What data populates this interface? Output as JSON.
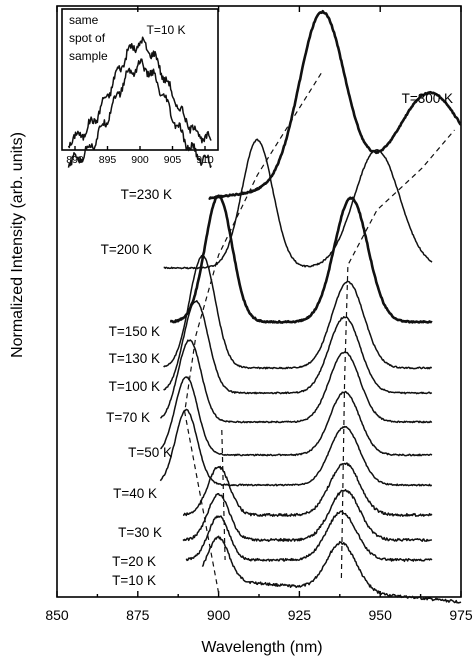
{
  "chart_data": {
    "type": "line",
    "title": "",
    "xlabel": "Wavelength (nm)",
    "ylabel": "Normalized Intensity (arb. units)",
    "xlim": [
      850,
      975
    ],
    "x_ticks": [
      "850",
      "875",
      "900",
      "925",
      "950",
      "975"
    ],
    "grid": false,
    "series": [
      {
        "name": "T=10 K",
        "peaks_nm": [
          900,
          938
        ]
      },
      {
        "name": "T=20 K",
        "peaks_nm": [
          900,
          938
        ]
      },
      {
        "name": "T=30 K",
        "peaks_nm": [
          900,
          939
        ]
      },
      {
        "name": "T=40 K",
        "peaks_nm": [
          900,
          939
        ]
      },
      {
        "name": "T=50 K",
        "peaks_nm": [
          890,
          939
        ]
      },
      {
        "name": "T=70 K",
        "peaks_nm": [
          890,
          939
        ]
      },
      {
        "name": "T=100 K",
        "peaks_nm": [
          891,
          939
        ]
      },
      {
        "name": "T=130 K",
        "peaks_nm": [
          893,
          939
        ]
      },
      {
        "name": "T=150 K",
        "peaks_nm": [
          895,
          940
        ]
      },
      {
        "name": "T=200 K",
        "peaks_nm": [
          900,
          941
        ]
      },
      {
        "name": "T=230 K",
        "peaks_nm": [
          912,
          949
        ]
      },
      {
        "name": "T=300 K",
        "peaks_nm": [
          932,
          965
        ]
      }
    ],
    "inset": {
      "labels": [
        "same",
        "spot of",
        "sample"
      ],
      "temperature": "T=10 K",
      "xlim": [
        888,
        912
      ],
      "x_ticks": [
        "890",
        "895",
        "900",
        "905",
        "910"
      ]
    }
  }
}
